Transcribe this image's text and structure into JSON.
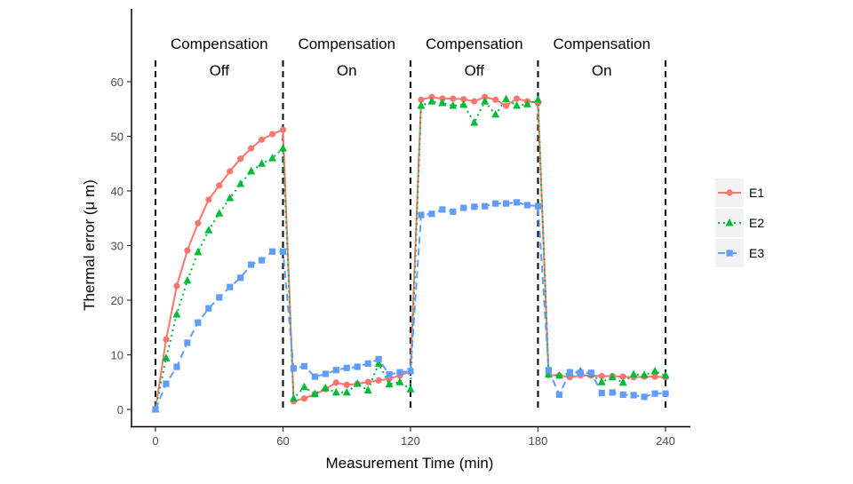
{
  "chart_data": {
    "type": "line",
    "xlabel": "Measurement Time (min)",
    "ylabel": "Thermal error (μ m)",
    "xlim": [
      0,
      240
    ],
    "ylim": [
      0,
      60
    ],
    "xticks": [
      0,
      60,
      120,
      180,
      240
    ],
    "yticks": [
      0,
      10,
      20,
      30,
      40,
      50,
      60
    ],
    "grid": false,
    "legend_position": "right",
    "phase_boundaries": [
      0,
      60,
      120,
      180,
      240
    ],
    "phases": [
      {
        "line1": "Compensation",
        "line2": "Off"
      },
      {
        "line1": "Compensation",
        "line2": "On"
      },
      {
        "line1": "Compensation",
        "line2": "Off"
      },
      {
        "line1": "Compensation",
        "line2": "On"
      }
    ],
    "x": [
      0,
      5,
      10,
      15,
      20,
      25,
      30,
      35,
      40,
      45,
      50,
      55,
      60,
      65,
      70,
      75,
      80,
      85,
      90,
      95,
      100,
      105,
      110,
      115,
      120,
      125,
      130,
      135,
      140,
      145,
      150,
      155,
      160,
      165,
      170,
      175,
      180,
      185,
      190,
      195,
      200,
      205,
      210,
      215,
      220,
      225,
      230,
      235,
      240
    ],
    "series": [
      {
        "name": "E1",
        "color": "#F8766D",
        "line": "solid",
        "marker": "circle",
        "values": [
          0,
          12.8,
          22.6,
          29.1,
          34.1,
          38.4,
          41.0,
          43.6,
          45.9,
          47.8,
          49.4,
          50.4,
          51.2,
          1.5,
          2.0,
          2.8,
          3.7,
          4.9,
          4.5,
          4.7,
          5.0,
          5.3,
          5.6,
          6.2,
          7.0,
          56.7,
          57.2,
          56.9,
          56.9,
          56.8,
          56.4,
          57.2,
          56.7,
          55.6,
          56.9,
          56.4,
          56.1,
          6.3,
          6.2,
          5.9,
          6.2,
          6.2,
          6.1,
          6.1,
          6.0,
          5.9,
          6.0,
          6.0,
          5.9
        ]
      },
      {
        "name": "E2",
        "color": "#00BA38",
        "line": "dotted",
        "marker": "triangle",
        "values": [
          0,
          9.4,
          17.4,
          23.6,
          28.8,
          32.8,
          35.9,
          38.7,
          41.3,
          43.6,
          45.0,
          46.0,
          47.8,
          2.0,
          4.1,
          2.8,
          3.9,
          3.1,
          3.1,
          4.7,
          3.5,
          8.4,
          4.6,
          5.0,
          3.7,
          55.6,
          56.4,
          56.1,
          55.6,
          55.8,
          52.5,
          56.4,
          54.0,
          56.8,
          55.6,
          55.9,
          56.7,
          6.4,
          6.2,
          6.7,
          7.0,
          6.5,
          5.0,
          5.9,
          4.9,
          6.4,
          6.3,
          7.0,
          6.2
        ]
      },
      {
        "name": "E3",
        "color": "#619CFF",
        "line": "dashed",
        "marker": "square",
        "values": [
          0,
          4.7,
          7.8,
          12.2,
          15.9,
          18.5,
          20.5,
          22.4,
          24.1,
          26.5,
          27.3,
          28.9,
          28.9,
          7.5,
          7.9,
          6.0,
          6.5,
          7.2,
          7.6,
          7.8,
          8.4,
          9.2,
          6.4,
          6.8,
          7.0,
          35.6,
          35.8,
          36.6,
          36.2,
          36.9,
          37.1,
          37.2,
          37.7,
          37.7,
          37.9,
          37.4,
          37.2,
          7.2,
          2.7,
          6.8,
          6.7,
          6.7,
          3.0,
          3.1,
          2.7,
          2.6,
          2.3,
          2.9,
          2.9
        ]
      }
    ]
  }
}
